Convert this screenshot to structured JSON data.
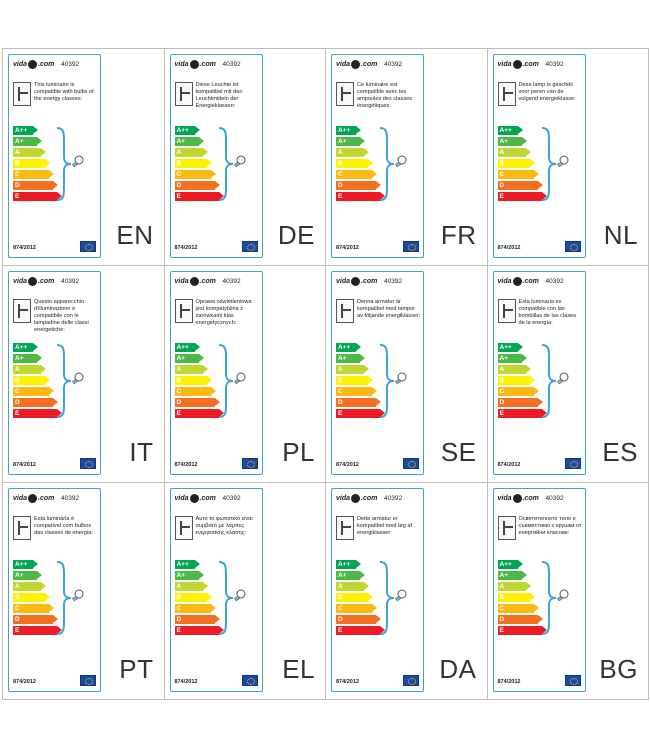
{
  "brand": {
    "name_left": "vida",
    "name_right": ".com"
  },
  "product_code": "40392",
  "regulation": "874/2012",
  "energy_classes": [
    {
      "label": "A++",
      "color": "#00a651",
      "width": 20
    },
    {
      "label": "A+",
      "color": "#4cb848",
      "width": 24
    },
    {
      "label": "A",
      "color": "#bfd730",
      "width": 28
    },
    {
      "label": "B",
      "color": "#fff200",
      "width": 32
    },
    {
      "label": "C",
      "color": "#fdb913",
      "width": 36
    },
    {
      "label": "D",
      "color": "#f37021",
      "width": 40
    },
    {
      "label": "E",
      "color": "#ed1c24",
      "width": 44
    }
  ],
  "colors": {
    "frame": "#3aa3d8",
    "eu_flag": "#1b4aa6",
    "eu_stars": "#f4d000"
  },
  "icons": {
    "luminaire": "luminaire-icon",
    "bulb": "bulb-icon",
    "eu": "eu-flag-icon",
    "brace": "brace-icon"
  },
  "labels": [
    {
      "lang": "EN",
      "text": "This luminaire is compatible with bulbs of the energy classes:"
    },
    {
      "lang": "DE",
      "text": "Diese Leuchte ist kompatibel mit den Leuchtmitteln der Energieklassen:"
    },
    {
      "lang": "FR",
      "text": "Ce luminaire est compatible avec les ampoules des classes énergétiques:"
    },
    {
      "lang": "NL",
      "text": "Deze lamp is geschikt voor peren van de volgend energieklasse:"
    },
    {
      "lang": "IT",
      "text": "Questo apparecchio d'illuminazione è compatibile con le lampadine delle classi energetiche:"
    },
    {
      "lang": "PL",
      "text": "Oprawa oświetleniowa jest kompatybilna z żarówkami klas energetycznych:"
    },
    {
      "lang": "SE",
      "text": "Denna armatur är kompatibel med lampor av följande energiklasser:"
    },
    {
      "lang": "ES",
      "text": "Esta luminaria es compatible con las bombillas de las clases de la energía:"
    },
    {
      "lang": "PT",
      "text": "Esta luminária é compatível com bulbos das classes de energia:"
    },
    {
      "lang": "EL",
      "text": "Αυτό το φωτιστικό είναι συμβατό με λάμπες ενεργειακής κλάσης:"
    },
    {
      "lang": "DA",
      "text": "Dette armatur er kompatibel med løg af energiklasser:"
    },
    {
      "lang": "BG",
      "text": "Осветителното тяло е съвместимо с крушки от енергийни класове:"
    }
  ]
}
